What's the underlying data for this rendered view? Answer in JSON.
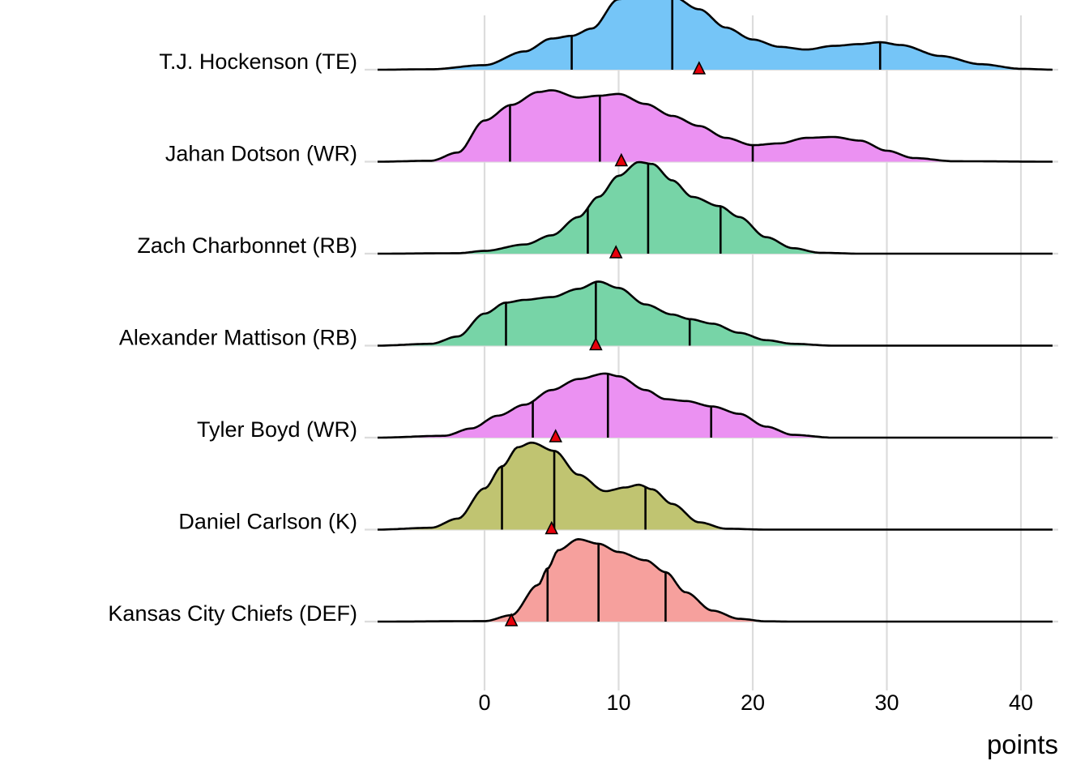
{
  "chart_data": {
    "type": "ridgeline",
    "title": "",
    "xlabel": "points",
    "ylabel": "",
    "xlim": [
      -8,
      42.5
    ],
    "x_ticks": [
      0,
      10,
      20,
      30,
      40
    ],
    "x_tick_labels": [
      "0",
      "10",
      "20",
      "30",
      "40"
    ],
    "grid": true,
    "legend": "none",
    "series": [
      {
        "name": "T.J. Hockenson (TE)",
        "color": "#72C4F7",
        "density": [
          [
            -8,
            0
          ],
          [
            -4,
            0.005
          ],
          [
            0,
            0.05
          ],
          [
            3,
            0.2
          ],
          [
            5,
            0.34
          ],
          [
            6.5,
            0.37
          ],
          [
            8,
            0.45
          ],
          [
            10,
            0.77
          ],
          [
            12,
            0.86
          ],
          [
            13,
            0.87
          ],
          [
            14,
            0.8
          ],
          [
            16,
            0.66
          ],
          [
            18,
            0.46
          ],
          [
            20,
            0.33
          ],
          [
            22,
            0.25
          ],
          [
            24,
            0.22
          ],
          [
            26,
            0.26
          ],
          [
            28,
            0.28
          ],
          [
            29.5,
            0.3
          ],
          [
            31,
            0.27
          ],
          [
            34,
            0.15
          ],
          [
            37,
            0.06
          ],
          [
            40,
            0.01
          ],
          [
            42.5,
            0
          ]
        ],
        "quantiles": [
          6.5,
          14.0,
          29.5
        ],
        "actual": 16.0
      },
      {
        "name": "Jahan Dotson (WR)",
        "color": "#EB8FF2",
        "density": [
          [
            -8,
            0
          ],
          [
            -4,
            0.01
          ],
          [
            -2,
            0.1
          ],
          [
            0,
            0.45
          ],
          [
            2,
            0.62
          ],
          [
            4,
            0.76
          ],
          [
            5,
            0.78
          ],
          [
            7,
            0.7
          ],
          [
            8.5,
            0.72
          ],
          [
            10,
            0.74
          ],
          [
            12,
            0.63
          ],
          [
            14,
            0.5
          ],
          [
            16,
            0.39
          ],
          [
            18,
            0.26
          ],
          [
            20,
            0.18
          ],
          [
            22,
            0.2
          ],
          [
            24,
            0.26
          ],
          [
            26,
            0.27
          ],
          [
            28,
            0.23
          ],
          [
            30,
            0.12
          ],
          [
            32,
            0.04
          ],
          [
            35,
            0.005
          ],
          [
            42.5,
            0
          ]
        ],
        "quantiles": [
          1.9,
          8.6,
          20.0
        ],
        "actual": 10.2
      },
      {
        "name": "Zach Charbonnet (RB)",
        "color": "#74D3A5",
        "density": [
          [
            -8,
            0
          ],
          [
            -2,
            0.005
          ],
          [
            0,
            0.03
          ],
          [
            3,
            0.1
          ],
          [
            5,
            0.2
          ],
          [
            7,
            0.4
          ],
          [
            8.5,
            0.62
          ],
          [
            10,
            0.85
          ],
          [
            11.5,
            1.0
          ],
          [
            12.5,
            0.98
          ],
          [
            14,
            0.8
          ],
          [
            15.5,
            0.62
          ],
          [
            17.5,
            0.52
          ],
          [
            19,
            0.4
          ],
          [
            21,
            0.18
          ],
          [
            23,
            0.06
          ],
          [
            25,
            0.01
          ],
          [
            28,
            0
          ],
          [
            42.5,
            0
          ]
        ],
        "quantiles": [
          7.7,
          12.2,
          17.6
        ],
        "actual": 9.8
      },
      {
        "name": "Alexander Mattison (RB)",
        "color": "#74D3A5",
        "density": [
          [
            -8,
            0
          ],
          [
            -4,
            0.02
          ],
          [
            -2,
            0.1
          ],
          [
            0,
            0.35
          ],
          [
            1.6,
            0.47
          ],
          [
            3,
            0.5
          ],
          [
            5,
            0.53
          ],
          [
            7,
            0.62
          ],
          [
            8.5,
            0.7
          ],
          [
            10,
            0.63
          ],
          [
            12,
            0.45
          ],
          [
            14,
            0.34
          ],
          [
            15.3,
            0.29
          ],
          [
            17,
            0.24
          ],
          [
            19,
            0.14
          ],
          [
            21,
            0.06
          ],
          [
            23,
            0.02
          ],
          [
            26,
            0
          ],
          [
            42.5,
            0
          ]
        ],
        "quantiles": [
          1.6,
          8.3,
          15.3
        ],
        "actual": 8.3
      },
      {
        "name": "Tyler Boyd (WR)",
        "color": "#EB8FF2",
        "density": [
          [
            -8,
            0
          ],
          [
            -3,
            0.02
          ],
          [
            -1,
            0.1
          ],
          [
            1,
            0.24
          ],
          [
            3,
            0.36
          ],
          [
            5,
            0.52
          ],
          [
            7,
            0.64
          ],
          [
            9,
            0.7
          ],
          [
            10,
            0.67
          ],
          [
            12,
            0.52
          ],
          [
            13.5,
            0.42
          ],
          [
            15,
            0.4
          ],
          [
            17,
            0.34
          ],
          [
            19,
            0.26
          ],
          [
            21,
            0.12
          ],
          [
            23,
            0.03
          ],
          [
            26,
            0
          ],
          [
            42.5,
            0
          ]
        ],
        "quantiles": [
          3.6,
          9.2,
          16.9
        ],
        "actual": 5.3
      },
      {
        "name": "Daniel Carlson (K)",
        "color": "#BFC36E",
        "density": [
          [
            -8,
            0
          ],
          [
            -4,
            0.02
          ],
          [
            -2,
            0.12
          ],
          [
            0,
            0.45
          ],
          [
            1.3,
            0.69
          ],
          [
            2.5,
            0.9
          ],
          [
            3.5,
            0.95
          ],
          [
            5.2,
            0.86
          ],
          [
            7,
            0.6
          ],
          [
            9,
            0.42
          ],
          [
            10.5,
            0.46
          ],
          [
            11.5,
            0.49
          ],
          [
            12.5,
            0.44
          ],
          [
            14,
            0.28
          ],
          [
            16,
            0.08
          ],
          [
            18,
            0.01
          ],
          [
            21,
            0
          ],
          [
            42.5,
            0
          ]
        ],
        "quantiles": [
          1.3,
          5.2,
          12.0
        ],
        "actual": 5.0
      },
      {
        "name": "Kansas City Chiefs (DEF)",
        "color": "#F69E9B",
        "density": [
          [
            -8,
            0
          ],
          [
            0,
            0.005
          ],
          [
            2,
            0.07
          ],
          [
            4,
            0.4
          ],
          [
            4.7,
            0.58
          ],
          [
            5.5,
            0.78
          ],
          [
            7,
            0.9
          ],
          [
            8.5,
            0.85
          ],
          [
            10,
            0.76
          ],
          [
            12,
            0.67
          ],
          [
            13.5,
            0.54
          ],
          [
            15,
            0.32
          ],
          [
            17,
            0.12
          ],
          [
            19,
            0.03
          ],
          [
            21,
            0.003
          ],
          [
            23,
            0
          ],
          [
            42.5,
            0
          ]
        ],
        "quantiles": [
          4.7,
          8.5,
          13.5
        ],
        "actual": 2.0
      }
    ]
  }
}
